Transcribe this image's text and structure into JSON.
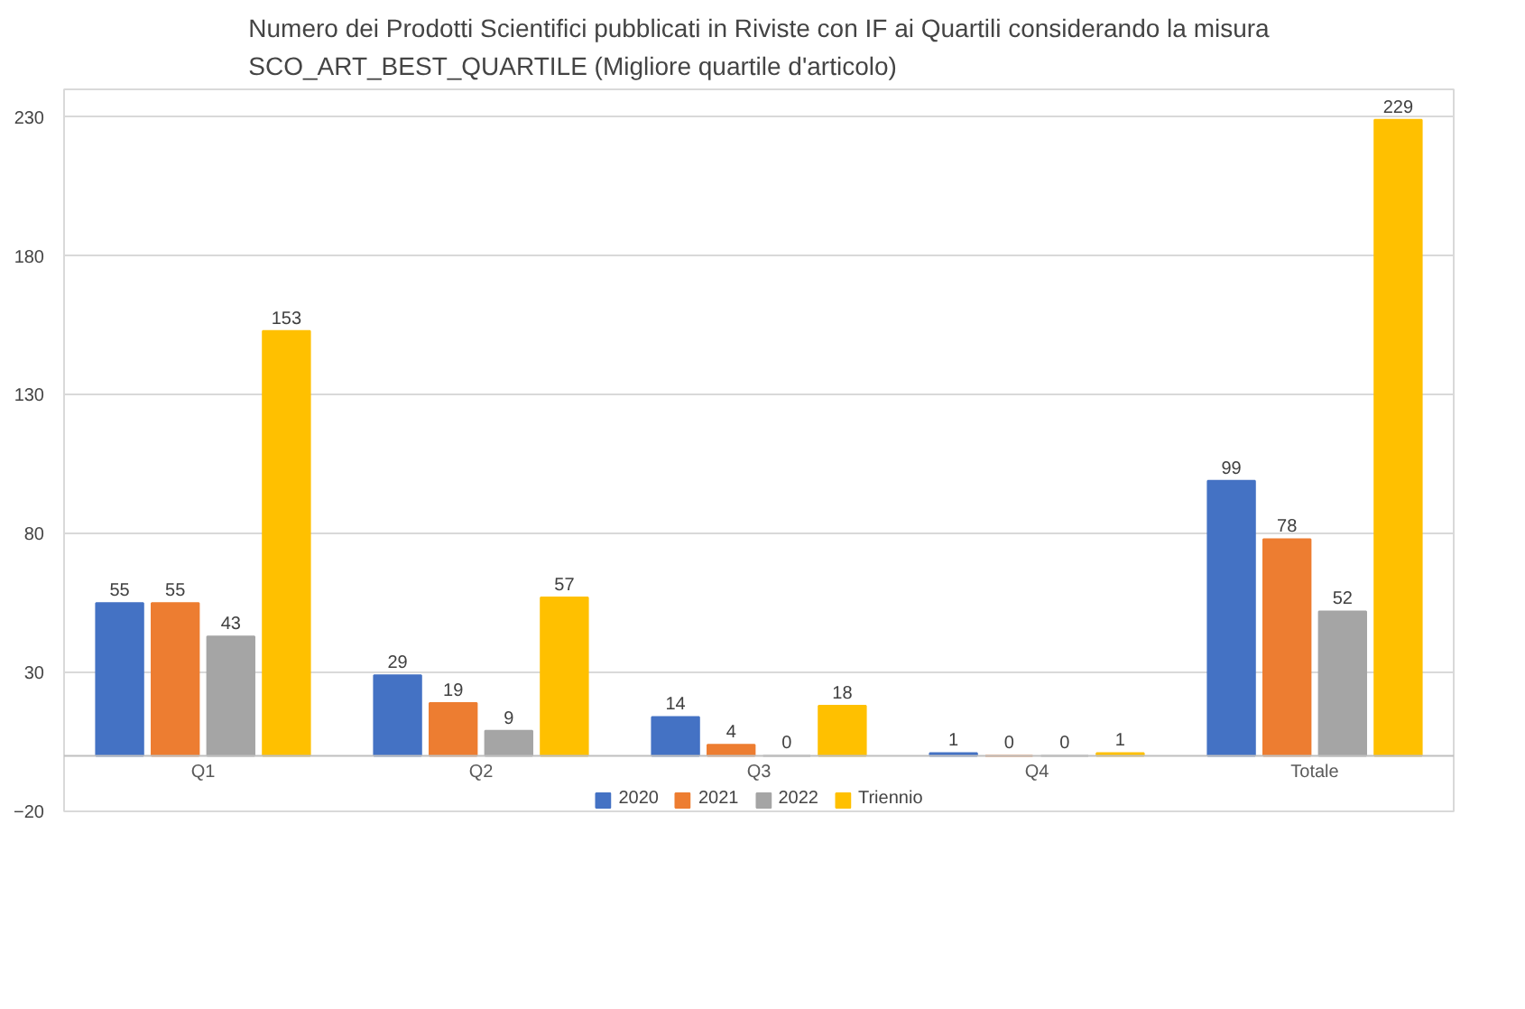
{
  "chart_data": {
    "type": "bar",
    "title": "Numero dei Prodotti Scientifici pubblicati in Riviste con IF ai Quartili considerando la misura\nSCO_ART_BEST_QUARTILE (Migliore quartile d'articolo)",
    "categories": [
      "Q1",
      "Q2",
      "Q3",
      "Q4",
      "Totale"
    ],
    "series": [
      {
        "name": "2020",
        "color": "#4472c4",
        "values": [
          55,
          29,
          14,
          1,
          99
        ]
      },
      {
        "name": "2021",
        "color": "#ed7d31",
        "values": [
          55,
          19,
          4,
          0,
          78
        ]
      },
      {
        "name": "2022",
        "color": "#a5a5a5",
        "values": [
          43,
          9,
          0,
          0,
          52
        ]
      },
      {
        "name": "Triennio",
        "color": "#ffc000",
        "values": [
          153,
          57,
          18,
          1,
          229
        ]
      }
    ],
    "ylim": [
      -20,
      240
    ],
    "yticks": [
      -20,
      30,
      80,
      130,
      180,
      230
    ],
    "grid": "y",
    "legend": "bottom",
    "data_labels": true
  }
}
